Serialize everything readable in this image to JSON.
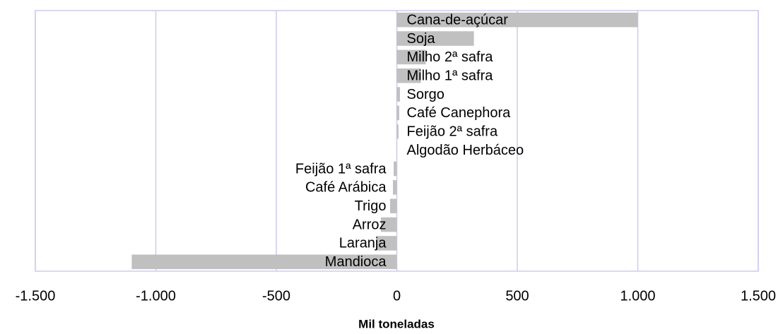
{
  "chart_data": {
    "type": "hbar",
    "xlabel": "Mil toneladas",
    "categories": [
      "Cana-de-açúcar",
      "Soja",
      "Milho 2ª safra",
      "Milho 1ª safra",
      "Sorgo",
      "Café Canephora",
      "Feijão 2ª safra",
      "Algodão Herbáceo",
      "Feijão 1ª safra",
      "Café Arábica",
      "Trigo",
      "Arroz",
      "Laranja",
      "Mandioca"
    ],
    "values": [
      1000,
      320,
      120,
      100,
      13,
      10,
      7,
      1,
      -13,
      -16,
      -28,
      -66,
      -84,
      -1100
    ],
    "color": "#c0c0c0",
    "xlim": [
      -1500,
      1500
    ],
    "xticks": [
      {
        "value": -1500,
        "label": "-1.500"
      },
      {
        "value": -1000,
        "label": "-1.000"
      },
      {
        "value": -500,
        "label": "-500"
      },
      0,
      {
        "value": 500,
        "label": "500"
      },
      {
        "value": 1000,
        "label": "1.000"
      },
      {
        "value": 1500,
        "label": "1.500"
      }
    ],
    "grid": true
  }
}
